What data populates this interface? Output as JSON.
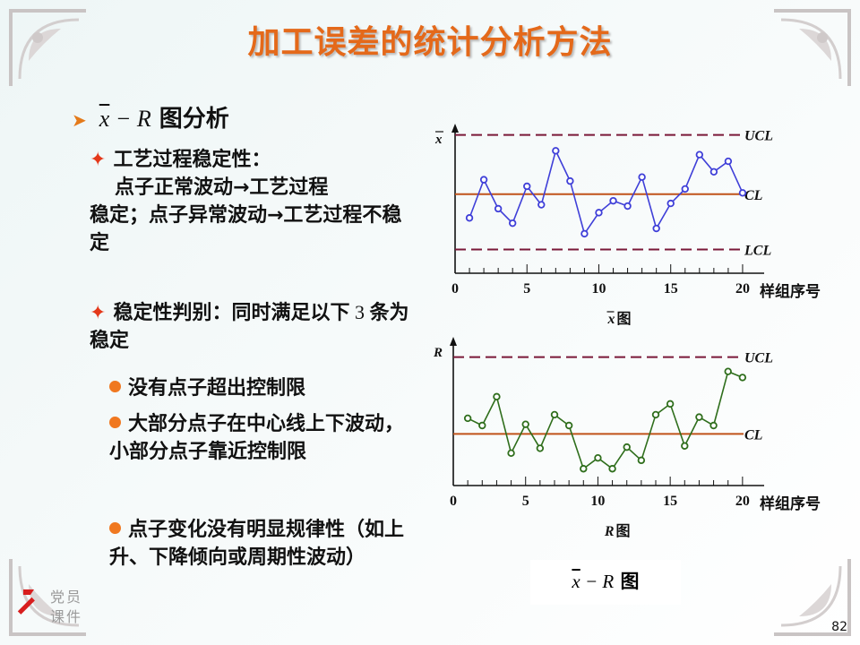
{
  "slide": {
    "title": "加工误差的统计分析方法",
    "heading_var": "x",
    "heading_op": " − ",
    "heading_r": "R",
    "heading_suffix": " 图分析",
    "bullet1_title": "工艺过程稳定性：",
    "bullet1_body_line1": "点子正常波动→工艺过程",
    "bullet1_body_rest": "稳定；点子异常波动→工艺过程不稳定",
    "bullet2_a": "稳定性判别：同时满足以下",
    "bullet2_num": " 3 ",
    "bullet2_b": "条为稳定",
    "sub1": "没有点子超出控制限",
    "sub2": "大部分点子在中心线上下波动，小部分点子靠近控制限",
    "sub3": "点子变化没有明显规律性（如上升、下降倾向或周期性波动）",
    "caption_var": "x",
    "caption_op": " − ",
    "caption_r": "R",
    "caption_suffix": " 图",
    "party_line1": "党员",
    "party_line2": "课件",
    "page_number": "82"
  },
  "chart_data": [
    {
      "type": "line",
      "ylabel": "x",
      "xlabel": "样组序号",
      "caption_var": "x",
      "caption_suffix": " 图",
      "x_ticks": [
        "0",
        "5",
        "10",
        "15",
        "20"
      ],
      "xlim": [
        0,
        21
      ],
      "ylim": [
        0,
        1
      ],
      "x": [
        1,
        2,
        3,
        4,
        5,
        6,
        7,
        8,
        9,
        10,
        11,
        12,
        13,
        14,
        15,
        16,
        17,
        18,
        19,
        20
      ],
      "values": [
        0.42,
        0.71,
        0.49,
        0.38,
        0.66,
        0.52,
        0.93,
        0.7,
        0.3,
        0.46,
        0.55,
        0.51,
        0.73,
        0.34,
        0.53,
        0.64,
        0.9,
        0.77,
        0.85,
        0.61
      ],
      "center_line": {
        "label": "CL",
        "value": 0.6
      },
      "upper_limit": {
        "label": "UCL",
        "value": 1.05
      },
      "lower_limit": {
        "label": "LCL",
        "value": 0.18
      },
      "colors": {
        "series": "#3f3fd8",
        "center": "#c0531a",
        "limits": "#7a1838"
      }
    },
    {
      "type": "line",
      "ylabel": "R",
      "xlabel": "样组序号",
      "caption_var": "R",
      "caption_suffix": " 图",
      "x_ticks": [
        "0",
        "5",
        "10",
        "15",
        "20"
      ],
      "xlim": [
        0,
        21
      ],
      "ylim": [
        0,
        1
      ],
      "x": [
        1,
        2,
        3,
        4,
        5,
        6,
        7,
        8,
        9,
        10,
        11,
        12,
        13,
        14,
        15,
        16,
        17,
        18,
        19,
        20
      ],
      "values": [
        0.56,
        0.5,
        0.74,
        0.27,
        0.51,
        0.31,
        0.59,
        0.5,
        0.14,
        0.23,
        0.14,
        0.32,
        0.21,
        0.59,
        0.68,
        0.33,
        0.57,
        0.5,
        0.95,
        0.9
      ],
      "center_line": {
        "label": "CL",
        "value": 0.43
      },
      "upper_limit": {
        "label": "UCL",
        "value": 1.07
      },
      "colors": {
        "series": "#2f6e1c",
        "center": "#c0531a",
        "limits": "#7a1838"
      }
    }
  ]
}
